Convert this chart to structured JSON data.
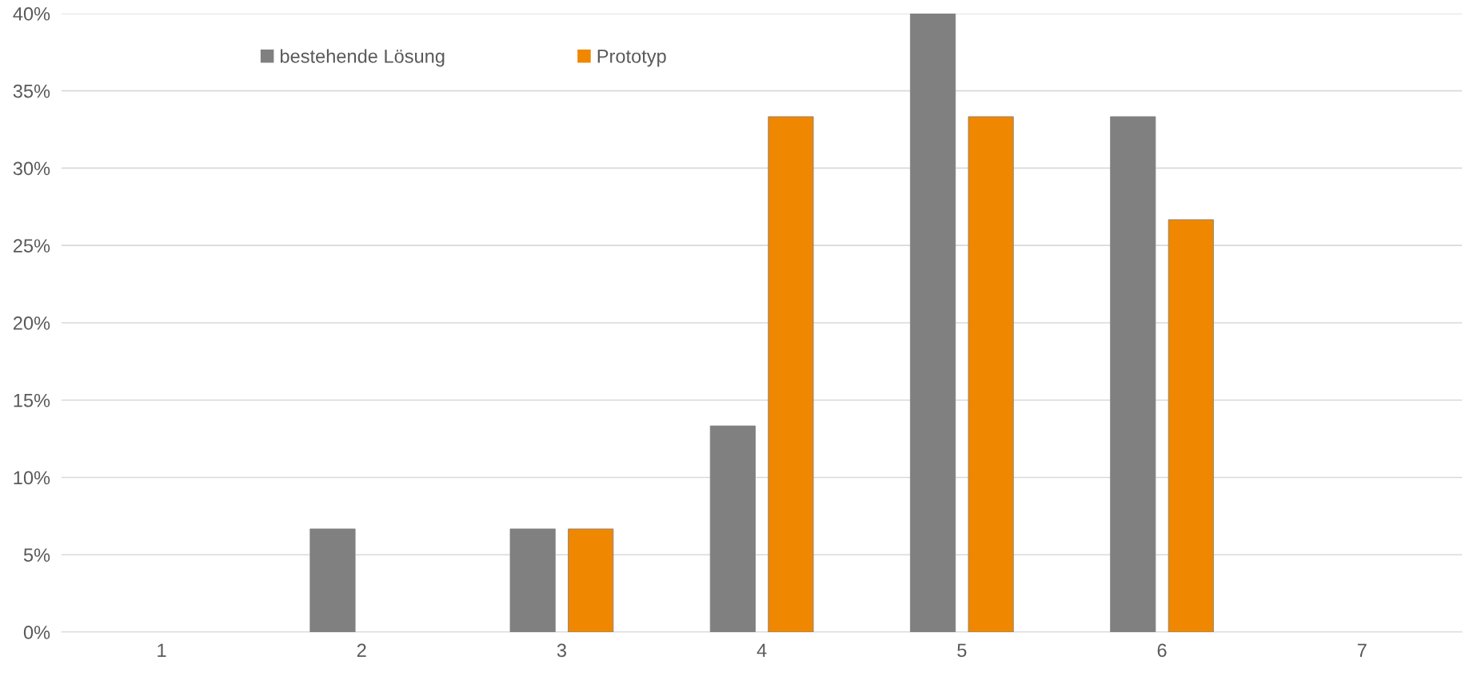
{
  "chart_data": {
    "type": "bar",
    "categories": [
      "1",
      "2",
      "3",
      "4",
      "5",
      "6",
      "7"
    ],
    "series": [
      {
        "name": "bestehende Lösung",
        "color": "#808080",
        "values": [
          0,
          6.67,
          6.67,
          13.33,
          40,
          33.33,
          0
        ]
      },
      {
        "name": "Prototyp",
        "color": "#f08700",
        "values": [
          0,
          0,
          6.67,
          33.33,
          33.33,
          26.67,
          0
        ]
      }
    ],
    "ylim": [
      0,
      40
    ],
    "yticks": [
      {
        "value": 0,
        "label": "0%"
      },
      {
        "value": 5,
        "label": "5%"
      },
      {
        "value": 10,
        "label": "10%"
      },
      {
        "value": 15,
        "label": "15%"
      },
      {
        "value": 20,
        "label": "20%"
      },
      {
        "value": 25,
        "label": "25%"
      },
      {
        "value": 30,
        "label": "30%"
      },
      {
        "value": 35,
        "label": "35%"
      },
      {
        "value": 40,
        "label": "40%"
      }
    ],
    "grid": "y",
    "legend": "top left"
  }
}
